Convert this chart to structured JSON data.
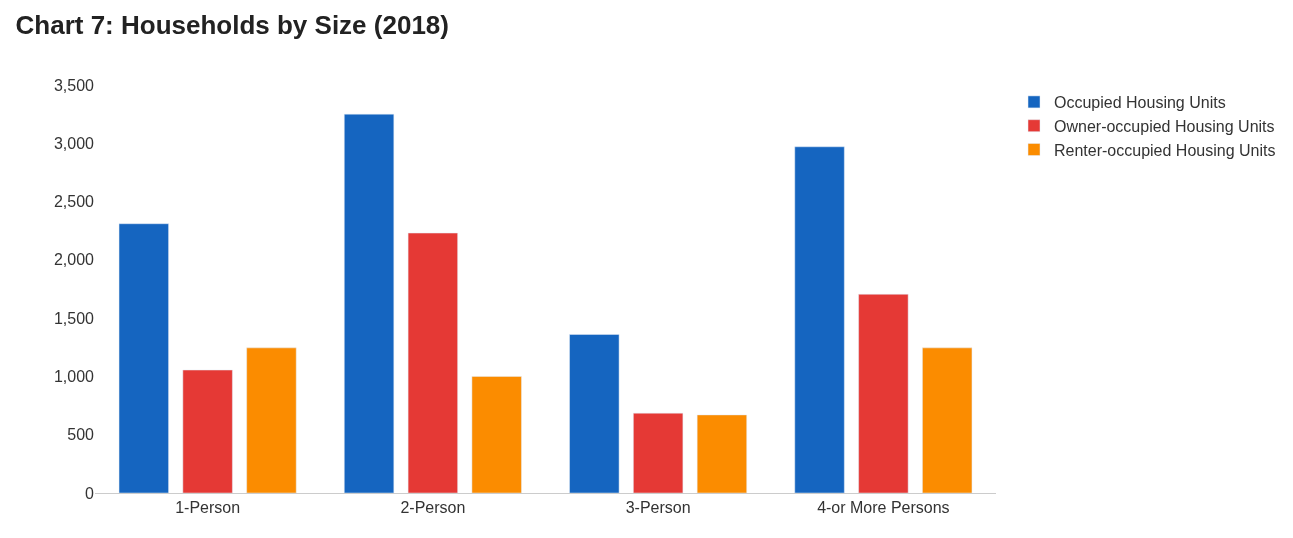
{
  "chart_data": {
    "type": "bar",
    "title": "Chart 7: Households by Size (2018)",
    "categories": [
      "1-Person",
      "2-Person",
      "3-Person",
      "4-or More Persons"
    ],
    "series": [
      {
        "name": "Occupied Housing Units",
        "color": "#1565c0",
        "values": [
          2310,
          3250,
          1360,
          2970
        ]
      },
      {
        "name": "Owner-occupied Housing Units",
        "color": "#e53935",
        "values": [
          1055,
          2230,
          685,
          1705
        ]
      },
      {
        "name": "Renter-occupied Housing Units",
        "color": "#fb8c00",
        "values": [
          1245,
          1000,
          670,
          1245
        ]
      }
    ],
    "ylim": [
      0,
      3500
    ],
    "yticks": [
      0,
      500,
      {
        "value": 1000,
        "label": "1,000"
      },
      {
        "value": 1500,
        "label": "1,500"
      },
      {
        "value": 2000,
        "label": "2,000"
      },
      {
        "value": 2500,
        "label": "2,500"
      },
      {
        "value": 3000,
        "label": "3,000"
      },
      {
        "value": 3500,
        "label": "3,500"
      }
    ],
    "grid": false,
    "legend": "top right"
  }
}
